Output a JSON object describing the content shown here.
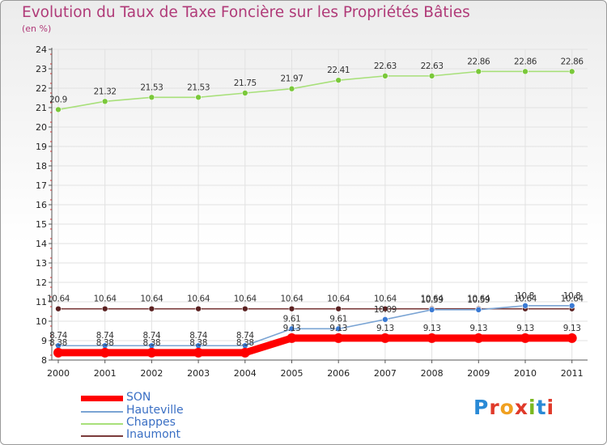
{
  "title": "Evolution du Taux de Taxe Foncière sur les Propriétés Bâties",
  "unit": "(en %)",
  "logo": {
    "letters": [
      "P",
      "r",
      "o",
      "x",
      "i",
      "t",
      "i"
    ],
    "colors": [
      "#2a8ad6",
      "#e03a2a",
      "#f0a020",
      "#e03a2a",
      "#7ab820",
      "#2a8ad6",
      "#e03a2a"
    ]
  },
  "legend": [
    {
      "label": "SON",
      "color": "#ff0000",
      "weight": "thick"
    },
    {
      "label": "Hauteville",
      "color": "#7aa4d4",
      "weight": "thin"
    },
    {
      "label": "Chappes",
      "color": "#a8e07a",
      "weight": "thin"
    },
    {
      "label": "Inaumont",
      "color": "#7a3a3a",
      "weight": "thin"
    }
  ],
  "chart_data": {
    "type": "line",
    "title": "Evolution du Taux de Taxe Foncière sur les Propriétés Bâties",
    "ylabel": "(en %)",
    "xlabel": "",
    "categories": [
      "2000",
      "2001",
      "2002",
      "2003",
      "2004",
      "2005",
      "2006",
      "2007",
      "2008",
      "2009",
      "2010",
      "2011"
    ],
    "ylim": [
      8,
      24
    ],
    "yticks": [
      "8",
      "9",
      "10",
      "11",
      "12",
      "13",
      "14",
      "15",
      "16",
      "17",
      "18",
      "19",
      "20",
      "21",
      "22",
      "23",
      "24"
    ],
    "series": [
      {
        "name": "SON",
        "color": "#ff0000",
        "marker": "#ff0000",
        "values": [
          8.38,
          8.38,
          8.38,
          8.38,
          8.38,
          9.13,
          9.13,
          9.13,
          9.13,
          9.13,
          9.13,
          9.13
        ],
        "labels": [
          "8.38",
          "8.38",
          "8.38",
          "8.38",
          "8.38",
          "9.13",
          "9.13",
          "9.13",
          "9.13",
          "9.13",
          "9.13",
          "9.13"
        ]
      },
      {
        "name": "Hauteville",
        "color": "#7aa4d4",
        "marker": "#3a7ad4",
        "values": [
          8.74,
          8.74,
          8.74,
          8.74,
          8.74,
          9.61,
          9.61,
          10.09,
          10.59,
          10.59,
          10.8,
          10.8
        ],
        "labels": [
          "8.74",
          "8.74",
          "8.74",
          "8.74",
          "8.74",
          "9.61",
          "9.61",
          "10.09",
          "10.59",
          "10.59",
          "10.8",
          "10.8"
        ]
      },
      {
        "name": "Chappes",
        "color": "#a8e07a",
        "marker": "#7ac83a",
        "values": [
          20.9,
          21.32,
          21.53,
          21.53,
          21.75,
          21.97,
          22.41,
          22.63,
          22.63,
          22.86,
          22.86,
          22.86
        ],
        "labels": [
          "20.9",
          "21.32",
          "21.53",
          "21.53",
          "21.75",
          "21.97",
          "22.41",
          "22.63",
          "22.63",
          "22.86",
          "22.86",
          "22.86"
        ]
      },
      {
        "name": "Inaumont",
        "color": "#7a3a3a",
        "marker": "#5a2020",
        "values": [
          10.64,
          10.64,
          10.64,
          10.64,
          10.64,
          10.64,
          10.64,
          10.64,
          10.64,
          10.64,
          10.64,
          10.64
        ],
        "labels": [
          "10.64",
          "10.64",
          "10.64",
          "10.64",
          "10.64",
          "10.64",
          "10.64",
          "10.64",
          "10.64",
          "10.64",
          "10.64",
          "10.64"
        ]
      }
    ]
  }
}
